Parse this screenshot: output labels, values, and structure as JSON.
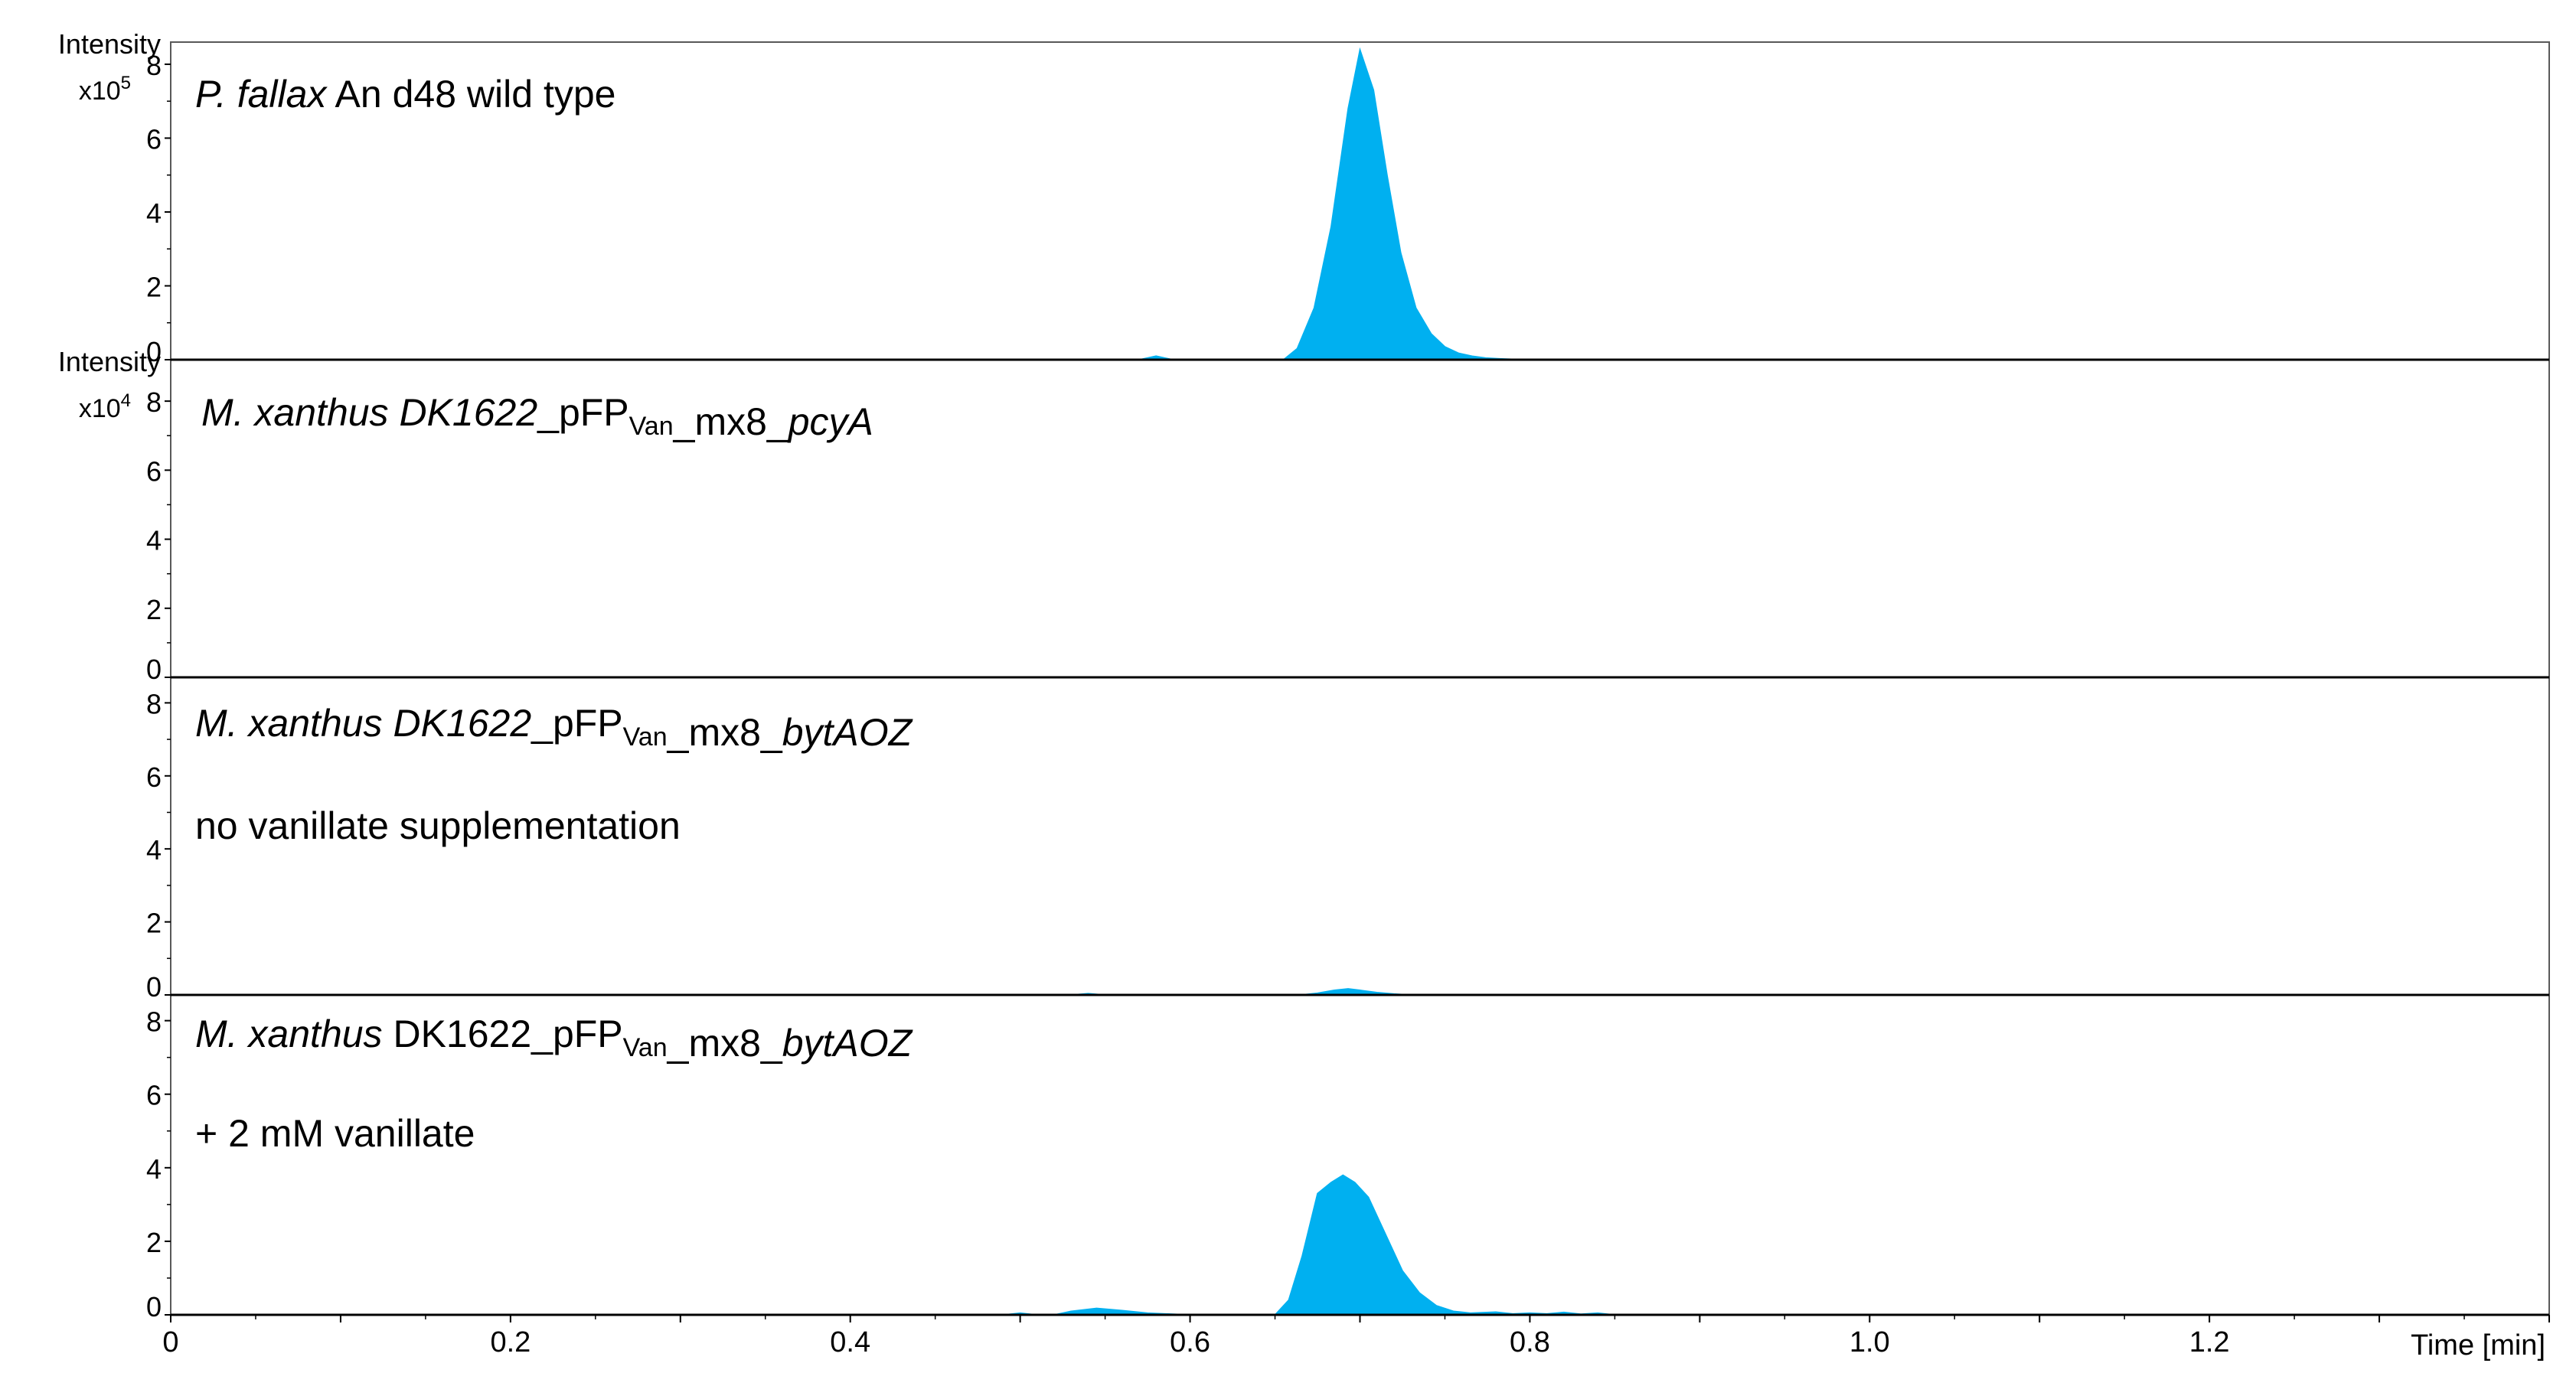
{
  "chart_data": {
    "type": "area",
    "x_axis": {
      "label": "Time [min]",
      "range": [
        0,
        1.4
      ],
      "major_ticks": [
        0,
        0.2,
        0.4,
        0.6,
        0.8,
        1.0,
        1.2
      ],
      "major_tick_labels": [
        "0",
        "0.2",
        "0.4",
        "0.6",
        "0.8",
        "1.0",
        "1.2"
      ],
      "minor_step": 0.1
    },
    "fill_color": "#00b0f0",
    "panels": [
      {
        "y_title": "Intensity",
        "y_multiplier_base": "x10",
        "y_multiplier_exp": "5",
        "ylim": [
          0,
          8.6
        ],
        "y_ticks": [
          0,
          2,
          4,
          6,
          8
        ],
        "y_tick_labels": [
          "0",
          "2",
          "4",
          "6",
          "8"
        ],
        "annotations": [
          [
            {
              "t": "P. fallax",
              "i": true
            },
            {
              "t": " An d48 wild type"
            }
          ]
        ],
        "series": [
          {
            "x": [
              0,
              0.57,
              0.58,
              0.59,
              0.655,
              0.663,
              0.673,
              0.683,
              0.693,
              0.7,
              0.708,
              0.716,
              0.724,
              0.733,
              0.742,
              0.75,
              0.758,
              0.766,
              0.774,
              0.782,
              0.792,
              0.8,
              1.4
            ],
            "y": [
              0,
              0,
              0.1,
              0,
              0,
              0.3,
              1.4,
              3.6,
              6.8,
              8.4,
              7.3,
              5.0,
              2.9,
              1.4,
              0.7,
              0.35,
              0.18,
              0.1,
              0.05,
              0.03,
              0.01,
              0,
              0
            ]
          }
        ]
      },
      {
        "y_title": "Intensity",
        "y_multiplier_base": "x10",
        "y_multiplier_exp": "4",
        "ylim": [
          0,
          9.2
        ],
        "y_ticks": [
          0,
          2,
          4,
          6,
          8
        ],
        "y_tick_labels": [
          "0",
          "2",
          "4",
          "6",
          "8"
        ],
        "annotations": [
          [
            {
              "t": "M. xanthus DK1622",
              "i": true
            },
            {
              "t": "_pFP"
            },
            {
              "t": "Van",
              "sub": true
            },
            {
              "t": "_mx8_"
            },
            {
              "t": "pcyA",
              "i": true
            }
          ]
        ],
        "series": [
          {
            "x": [
              0,
              1.4
            ],
            "y": [
              0,
              0
            ]
          }
        ]
      },
      {
        "y_title": "",
        "y_multiplier_base": "",
        "y_multiplier_exp": "",
        "ylim": [
          0,
          8.7
        ],
        "y_ticks": [
          0,
          2,
          4,
          6,
          8
        ],
        "y_tick_labels": [
          "0",
          "2",
          "4",
          "6",
          "8"
        ],
        "annotations": [
          [
            {
              "t": "M. xanthus DK1622",
              "i": true
            },
            {
              "t": "_pFP"
            },
            {
              "t": "Van",
              "sub": true
            },
            {
              "t": "_mx8_"
            },
            {
              "t": "bytAOZ",
              "i": true
            }
          ],
          [
            {
              "t": "no vanillate supplementation"
            }
          ]
        ],
        "series": [
          {
            "x": [
              0,
              0.53,
              0.54,
              0.55,
              0.665,
              0.675,
              0.685,
              0.693,
              0.7,
              0.71,
              0.72,
              0.73,
              1.4
            ],
            "y": [
              0,
              0,
              0.04,
              0,
              0,
              0.05,
              0.13,
              0.17,
              0.13,
              0.07,
              0.03,
              0,
              0
            ]
          }
        ]
      },
      {
        "y_title": "",
        "y_multiplier_base": "",
        "y_multiplier_exp": "",
        "ylim": [
          0,
          8.7
        ],
        "y_ticks": [
          0,
          2,
          4,
          6,
          8
        ],
        "y_tick_labels": [
          "0",
          "2",
          "4",
          "6",
          "8"
        ],
        "annotations": [
          [
            {
              "t": "M. xanthus",
              "i": true
            },
            {
              "t": " DK1622_pFP"
            },
            {
              "t": "Van",
              "sub": true
            },
            {
              "t": "_mx8_"
            },
            {
              "t": "bytAOZ",
              "i": true
            }
          ],
          [
            {
              "t": "+ 2 mM vanillate"
            }
          ]
        ],
        "series": [
          {
            "x": [
              0,
              0.49,
              0.5,
              0.51,
              0.52,
              0.53,
              0.545,
              0.56,
              0.575,
              0.59,
              0.6,
              0.65,
              0.658,
              0.666,
              0.675,
              0.683,
              0.69,
              0.697,
              0.705,
              0.715,
              0.725,
              0.735,
              0.745,
              0.755,
              0.765,
              0.78,
              0.79,
              0.8,
              0.81,
              0.82,
              0.83,
              0.84,
              0.85,
              1.4
            ],
            "y": [
              0,
              0,
              0.05,
              0,
              0,
              0.1,
              0.18,
              0.12,
              0.05,
              0.02,
              0,
              0,
              0.4,
              1.6,
              3.3,
              3.6,
              3.8,
              3.6,
              3.2,
              2.2,
              1.2,
              0.6,
              0.25,
              0.1,
              0.05,
              0.08,
              0.03,
              0.05,
              0.03,
              0.07,
              0.02,
              0.05,
              0,
              0
            ]
          }
        ]
      }
    ]
  }
}
